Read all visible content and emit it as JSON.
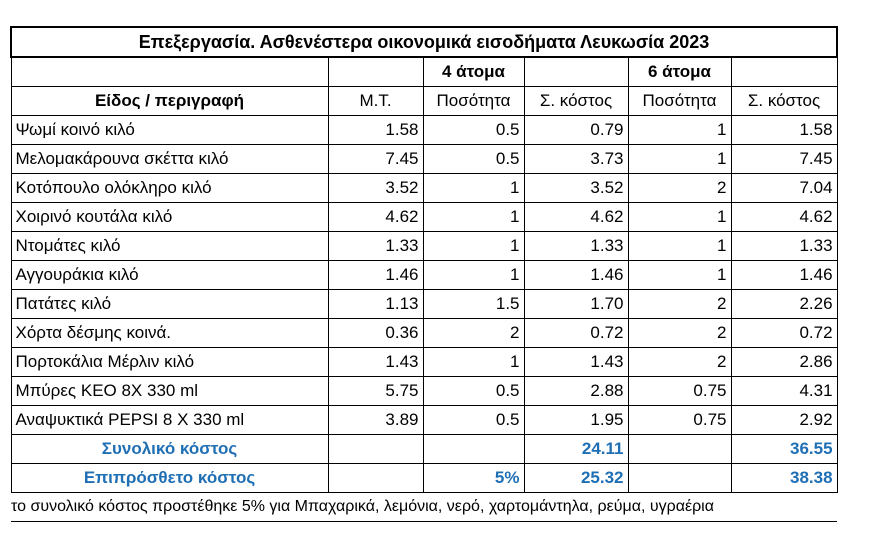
{
  "title": "Επεξεργασία. Ασθενέστερα οικονομικά εισοδήματα Λευκωσία 2023",
  "header": {
    "groups": [
      "4 άτομα",
      "6 άτομα"
    ],
    "columns": [
      "Είδος / περιγραφή",
      "Μ.Τ.",
      "Ποσότητα",
      "Σ. κόστος",
      "Ποσότητα",
      "Σ. κόστος"
    ]
  },
  "rows": [
    [
      "Ψωμί κοινό κιλό",
      "1.58",
      "0.5",
      "0.79",
      "1",
      "1.58"
    ],
    [
      "Μελομακάρουνα σκέττα κιλό",
      "7.45",
      "0.5",
      "3.73",
      "1",
      "7.45"
    ],
    [
      "Κοτόπουλο ολόκληρο κιλό",
      "3.52",
      "1",
      "3.52",
      "2",
      "7.04"
    ],
    [
      "Χοιρινό κουτάλα κιλό",
      "4.62",
      "1",
      "4.62",
      "1",
      "4.62"
    ],
    [
      "Ντομάτες κιλό",
      "1.33",
      "1",
      "1.33",
      "1",
      "1.33"
    ],
    [
      "Αγγουράκια κιλό",
      "1.46",
      "1",
      "1.46",
      "1",
      "1.46"
    ],
    [
      "Πατάτες κιλό",
      "1.13",
      "1.5",
      "1.70",
      "2",
      "2.26"
    ],
    [
      "Χόρτα δέσμης κοινά.",
      "0.36",
      "2",
      "0.72",
      "2",
      "0.72"
    ],
    [
      "Πορτοκάλια Μέρλιν κιλό",
      "1.43",
      "1",
      "1.43",
      "2",
      "2.86"
    ],
    [
      "Μπύρες ΚΕΟ  8Χ 330 ml",
      "5.75",
      "0.5",
      "2.88",
      "0.75",
      "4.31"
    ],
    [
      "Αναψυκτικά PEPSI 8 X 330 ml",
      "3.89",
      "0.5",
      "1.95",
      "0.75",
      "2.92"
    ]
  ],
  "total": {
    "label": "Συνολικό κόστος",
    "cost4": "24.11",
    "cost6": "36.55"
  },
  "extra": {
    "label": "Επιπρόσθετο κόστος",
    "rate": "5%",
    "cost4": "25.32",
    "cost6": "38.38"
  },
  "note": "το συνολικό κόστος προστέθηκε 5% για Μπαχαρικά, λεμόνια, νερό, χαρτομάντηλα, ρεύμα, υγραέρια"
}
